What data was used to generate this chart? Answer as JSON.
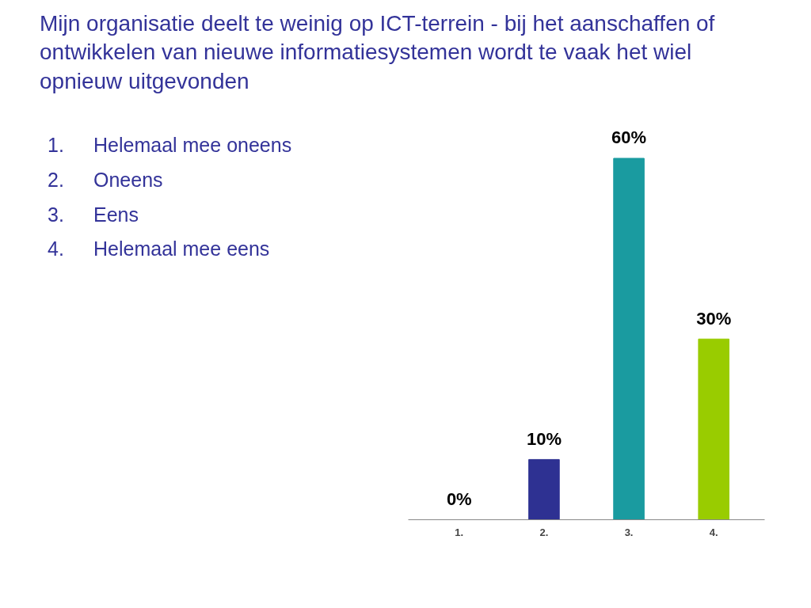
{
  "chart_data": {
    "type": "bar",
    "title": "Mijn organisatie deelt te weinig op ICT-terrein - bij het aanschaffen of ontwikkelen van nieuwe informatiesystemen wordt te vaak het wiel opnieuw uitgevonden",
    "annotations": [
      "1.\tHelemaal mee oneens",
      "2.\tOneens",
      "3.\tEens",
      "4.\tHelemaal mee eens"
    ],
    "categories": [
      "1.",
      "2.",
      "3.",
      "4."
    ],
    "values": [
      0,
      10,
      60,
      30
    ],
    "colors": [
      "#a9cdd0",
      "#2e3192",
      "#1a9ba0",
      "#99cc00"
    ],
    "value_labels": [
      "0%",
      "10%",
      "60%",
      "30%"
    ],
    "grid": false,
    "tick_labels": "x"
  }
}
